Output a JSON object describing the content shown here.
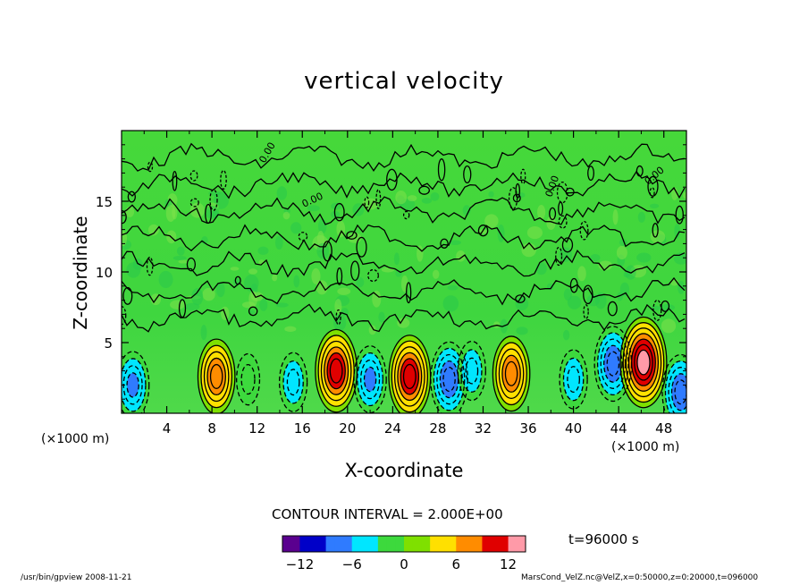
{
  "chart_data": {
    "type": "heatmap",
    "title": "vertical velocity",
    "xlabel": "X-coordinate",
    "ylabel": "Z-coordinate",
    "x_unit_left": "(×1000 m)",
    "x_unit_right": "(×1000 m)",
    "xlim": [
      0,
      50
    ],
    "ylim": [
      0,
      20
    ],
    "x_ticks": [
      4,
      8,
      12,
      16,
      20,
      24,
      28,
      32,
      36,
      40,
      44,
      48
    ],
    "y_ticks": [
      5,
      10,
      15
    ],
    "contour_interval_text": "CONTOUR INTERVAL = 2.000E+00",
    "contour_labels": [
      "0.00",
      "0.00",
      "0.00",
      "0.00"
    ],
    "colorbar": {
      "range": [
        -14,
        14
      ],
      "ticks": [
        -12,
        -6,
        0,
        6,
        12
      ],
      "colors": [
        "#5a008f",
        "#0000c8",
        "#2f7bff",
        "#00e6ff",
        "#3dd93d",
        "#7fe000",
        "#ffe000",
        "#ff8c00",
        "#e00000",
        "#ff9aa8"
      ]
    },
    "cells": [
      {
        "x": 1.0,
        "z": 2.0,
        "value": -7
      },
      {
        "x": 8.4,
        "z": 2.6,
        "value": 9
      },
      {
        "x": 11.2,
        "z": 2.4,
        "value": -3
      },
      {
        "x": 15.2,
        "z": 2.2,
        "value": -5
      },
      {
        "x": 19.0,
        "z": 3.0,
        "value": 11
      },
      {
        "x": 22.0,
        "z": 2.4,
        "value": -7
      },
      {
        "x": 25.5,
        "z": 2.6,
        "value": 11
      },
      {
        "x": 29.0,
        "z": 2.4,
        "value": -9
      },
      {
        "x": 31.0,
        "z": 3.0,
        "value": -5
      },
      {
        "x": 34.5,
        "z": 2.8,
        "value": 9
      },
      {
        "x": 40.0,
        "z": 2.4,
        "value": -5
      },
      {
        "x": 43.5,
        "z": 3.5,
        "value": -9
      },
      {
        "x": 46.2,
        "z": 3.6,
        "value": 13
      },
      {
        "x": 49.5,
        "z": 1.5,
        "value": -9
      }
    ],
    "time_text": "t=96000 s"
  },
  "footer": {
    "left": "/usr/bin/gpview  2008-11-21",
    "right": "MarsCond_VelZ.nc@VelZ,x=0:50000,z=0:20000,t=096000"
  }
}
